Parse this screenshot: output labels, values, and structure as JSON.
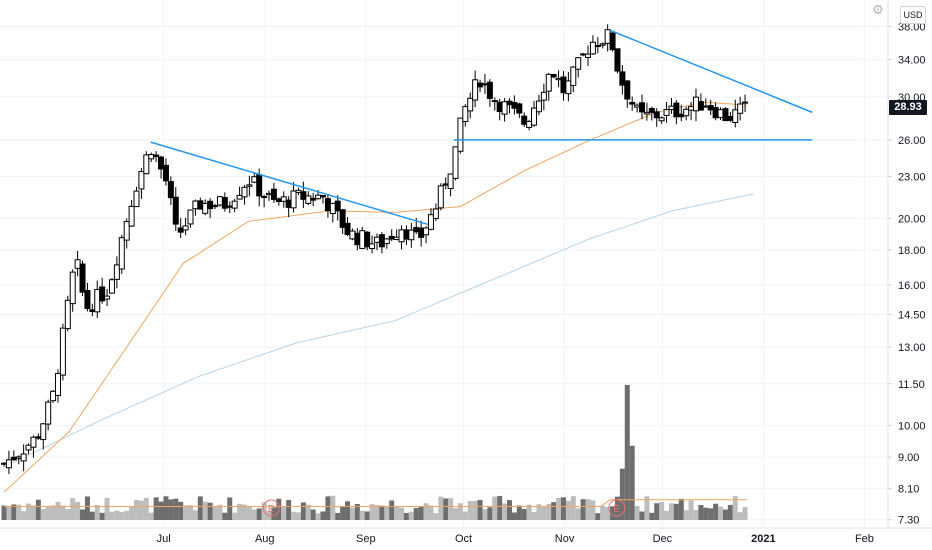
{
  "ui": {
    "currency": "USD",
    "last_price": "28.93",
    "colors": {
      "bull_fill": "#ffffff",
      "bear_fill": "#000000",
      "candle_stroke": "#000000",
      "ma_fast": "#f3a460",
      "ma_slow": "#b7d4ea",
      "trendline": "#2196f3",
      "volume_up": "#bdbdbd",
      "volume_down": "#6e6e6e",
      "volume_ma": "#f3a460",
      "grid": "#f0f3fa",
      "earnings_marker": "#e57373"
    }
  },
  "chart_data": {
    "type": "candlestick",
    "y_scale": "log",
    "ylim": [
      7.1,
      41.5
    ],
    "price_ticks": [
      "38.00",
      "34.00",
      "30.00",
      "26.00",
      "23.00",
      "20.00",
      "18.00",
      "16.00",
      "14.50",
      "13.00",
      "11.50",
      "10.00",
      "9.00",
      "8.10",
      "7.30"
    ],
    "time_ticks": [
      {
        "label": "Jul",
        "day": 49
      },
      {
        "label": "Aug",
        "day": 80
      },
      {
        "label": "Sep",
        "day": 111
      },
      {
        "label": "Oct",
        "day": 141
      },
      {
        "label": "Nov",
        "day": 172
      },
      {
        "label": "Dec",
        "day": 202
      },
      {
        "label": "2021",
        "day": 233
      },
      {
        "label": "Feb",
        "day": 264
      }
    ],
    "x_range_days": [
      0,
      270
    ],
    "key_points": [
      {
        "day": 0,
        "close": 8.8
      },
      {
        "day": 10,
        "close": 9.6
      },
      {
        "day": 15,
        "close": 11.0
      },
      {
        "day": 22,
        "close": 17.5
      },
      {
        "day": 25,
        "close": 14.8
      },
      {
        "day": 32,
        "close": 15.8
      },
      {
        "day": 40,
        "close": 22.0
      },
      {
        "day": 45,
        "close": 25.5
      },
      {
        "day": 50,
        "close": 22.5
      },
      {
        "day": 53,
        "close": 18.8
      },
      {
        "day": 60,
        "close": 21.0
      },
      {
        "day": 68,
        "close": 21.0
      },
      {
        "day": 75,
        "close": 22.8
      },
      {
        "day": 83,
        "close": 21.0
      },
      {
        "day": 91,
        "close": 21.5
      },
      {
        "day": 98,
        "close": 21.5
      },
      {
        "day": 106,
        "close": 19.0
      },
      {
        "day": 115,
        "close": 18.3
      },
      {
        "day": 122,
        "close": 19.5
      },
      {
        "day": 127,
        "close": 18.5
      },
      {
        "day": 133,
        "close": 21.0
      },
      {
        "day": 138,
        "close": 24.5
      },
      {
        "day": 141,
        "close": 28.5
      },
      {
        "day": 146,
        "close": 32.0
      },
      {
        "day": 150,
        "close": 30.0
      },
      {
        "day": 160,
        "close": 27.5
      },
      {
        "day": 168,
        "close": 33.0
      },
      {
        "day": 172,
        "close": 30.5
      },
      {
        "day": 180,
        "close": 36.0
      },
      {
        "day": 186,
        "close": 36.8
      },
      {
        "day": 189,
        "close": 32.0
      },
      {
        "day": 195,
        "close": 28.0
      },
      {
        "day": 205,
        "close": 28.5
      },
      {
        "day": 215,
        "close": 29.5
      },
      {
        "day": 222,
        "close": 28.0
      },
      {
        "day": 228,
        "close": 28.93
      }
    ],
    "ma_fast": [
      {
        "day": 0,
        "value": 8.0
      },
      {
        "day": 20,
        "value": 9.8
      },
      {
        "day": 40,
        "value": 13.5
      },
      {
        "day": 55,
        "value": 17.2
      },
      {
        "day": 75,
        "value": 19.8
      },
      {
        "day": 100,
        "value": 20.5
      },
      {
        "day": 120,
        "value": 20.4
      },
      {
        "day": 140,
        "value": 20.8
      },
      {
        "day": 160,
        "value": 23.5
      },
      {
        "day": 180,
        "value": 26.0
      },
      {
        "day": 200,
        "value": 28.5
      },
      {
        "day": 215,
        "value": 29.5
      },
      {
        "day": 228,
        "value": 29.2
      }
    ],
    "ma_slow": [
      {
        "day": 0,
        "value": 8.7
      },
      {
        "day": 30,
        "value": 10.2
      },
      {
        "day": 60,
        "value": 11.8
      },
      {
        "day": 90,
        "value": 13.2
      },
      {
        "day": 120,
        "value": 14.2
      },
      {
        "day": 150,
        "value": 16.3
      },
      {
        "day": 180,
        "value": 18.7
      },
      {
        "day": 205,
        "value": 20.5
      },
      {
        "day": 230,
        "value": 21.7
      }
    ],
    "trendlines": [
      {
        "from": {
          "day": 45,
          "price": 25.8
        },
        "to": {
          "day": 130,
          "price": 19.6
        }
      },
      {
        "from": {
          "day": 138,
          "price": 26.0
        },
        "to": {
          "day": 248,
          "price": 26.0
        }
      },
      {
        "from": {
          "day": 186,
          "price": 37.5
        },
        "to": {
          "day": 248,
          "price": 28.5
        }
      }
    ],
    "volume": {
      "spikes": [
        {
          "day": 191,
          "value": 100
        },
        {
          "day": 193,
          "value": 55
        },
        {
          "day": 190,
          "value": 38
        }
      ],
      "base_level": 10
    },
    "earnings_markers": [
      {
        "day": 82,
        "label": "E"
      },
      {
        "day": 188,
        "label": "E"
      }
    ]
  }
}
